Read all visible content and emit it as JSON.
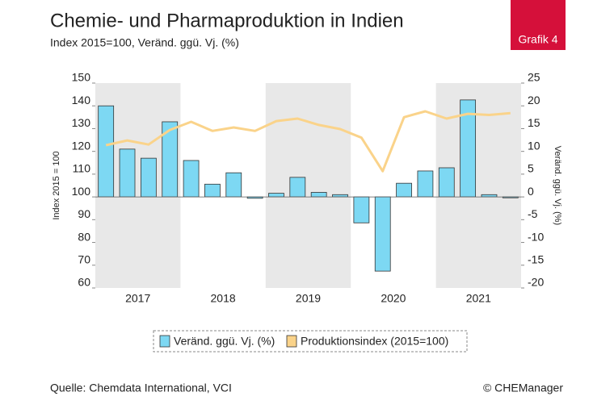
{
  "chart_data": {
    "type": "bar-line",
    "title": "Chemie- und Pharmaproduktion in Indien",
    "subtitle": "Index 2015=100, Veränd. ggü. Vj. (%)",
    "badge": "Grafik 4",
    "source": "Quelle: Chemdata International, VCI",
    "copyright": "© CHEManager",
    "ylabel": "Index 2015 = 100",
    "y2label": "Veränd. ggü. Vj. (%)",
    "groups": [
      "2017",
      "2018",
      "2019",
      "2020",
      "2021"
    ],
    "categories": [
      null,
      null,
      null,
      null,
      null,
      null,
      null,
      null,
      null,
      null,
      null,
      null,
      null,
      null,
      null,
      null,
      null,
      null,
      null,
      null
    ],
    "series": [
      {
        "name": "Veränd. ggü. Vj. (%)",
        "kind": "bar",
        "axis": "y2",
        "color": "#7dd8f3",
        "values": [
          20,
          10.5,
          8.5,
          16.5,
          8,
          2.8,
          5.3,
          -0.3,
          0.8,
          4.3,
          1,
          0.5,
          -5.7,
          -16.3,
          3,
          5.7,
          6.4,
          21.3,
          0.5,
          -0.2
        ]
      },
      {
        "name": "Produktionsindex (2015=100)",
        "kind": "line",
        "axis": "y",
        "color": "#fad38a",
        "values": [
          122.7,
          124.8,
          123,
          129.4,
          133,
          129,
          130.5,
          129,
          133.3,
          134.4,
          131.6,
          129.8,
          126,
          111.3,
          135,
          137.6,
          134.4,
          136.5,
          136,
          136.8
        ]
      }
    ],
    "ylim": [
      60,
      150
    ],
    "yticks": [
      60,
      70,
      80,
      90,
      100,
      110,
      120,
      130,
      140,
      150
    ],
    "y2lim": [
      -20,
      25
    ],
    "y2ticks": [
      -20,
      -15,
      -10,
      -5,
      0,
      5,
      10,
      15,
      20,
      25
    ]
  }
}
